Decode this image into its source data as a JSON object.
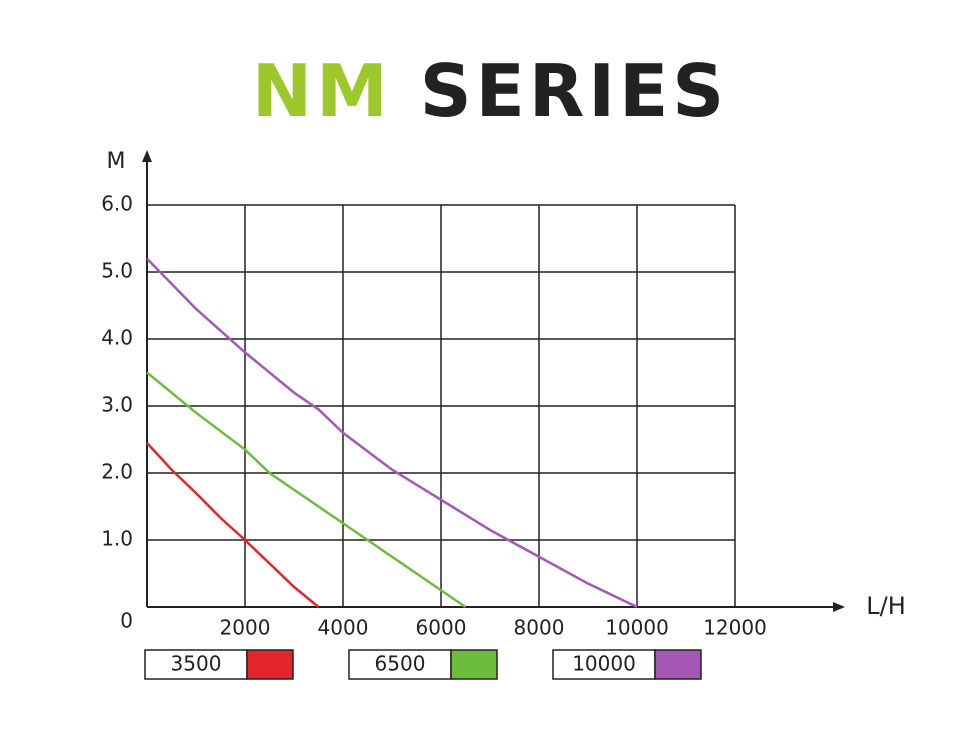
{
  "chart_data": {
    "type": "line",
    "title_parts": [
      {
        "text": "NM",
        "color": "#9dc82b"
      },
      {
        "text": "SERIES",
        "color": "#222222"
      }
    ],
    "y_label": "M",
    "x_label": "L/H",
    "xlim": [
      0,
      12000
    ],
    "ylim": [
      0,
      6
    ],
    "xticks": [
      2000,
      4000,
      6000,
      8000,
      10000,
      12000
    ],
    "yticks": [
      0,
      {
        "value": 1,
        "label": "1.0"
      },
      {
        "value": 2,
        "label": "2.0"
      },
      {
        "value": 3,
        "label": "3.0"
      },
      {
        "value": 4,
        "label": "4.0"
      },
      {
        "value": 5,
        "label": "5.0"
      },
      {
        "value": 6,
        "label": "6.0"
      }
    ],
    "grid": true,
    "series": [
      {
        "name": "3500",
        "color": "#e3262b",
        "x": [
          0,
          500,
          1000,
          1500,
          2000,
          2500,
          3000,
          3500
        ],
        "values": [
          2.45,
          2.05,
          1.7,
          1.33,
          1.0,
          0.65,
          0.3,
          0
        ]
      },
      {
        "name": "6500",
        "color": "#6cbd3c",
        "x": [
          0,
          1000,
          2000,
          2500,
          3000,
          4000,
          4500,
          5000,
          6000,
          6500
        ],
        "values": [
          3.5,
          2.9,
          2.35,
          2.0,
          1.75,
          1.25,
          1.0,
          0.75,
          0.25,
          0
        ]
      },
      {
        "name": "10000",
        "color": "#a557b5",
        "x": [
          0,
          1000,
          2000,
          3000,
          3500,
          4000,
          5000,
          6000,
          7000,
          7500,
          8000,
          9000,
          10000
        ],
        "values": [
          5.2,
          4.45,
          3.8,
          3.2,
          2.95,
          2.6,
          2.05,
          1.6,
          1.15,
          0.95,
          0.75,
          0.35,
          0
        ]
      }
    ]
  }
}
